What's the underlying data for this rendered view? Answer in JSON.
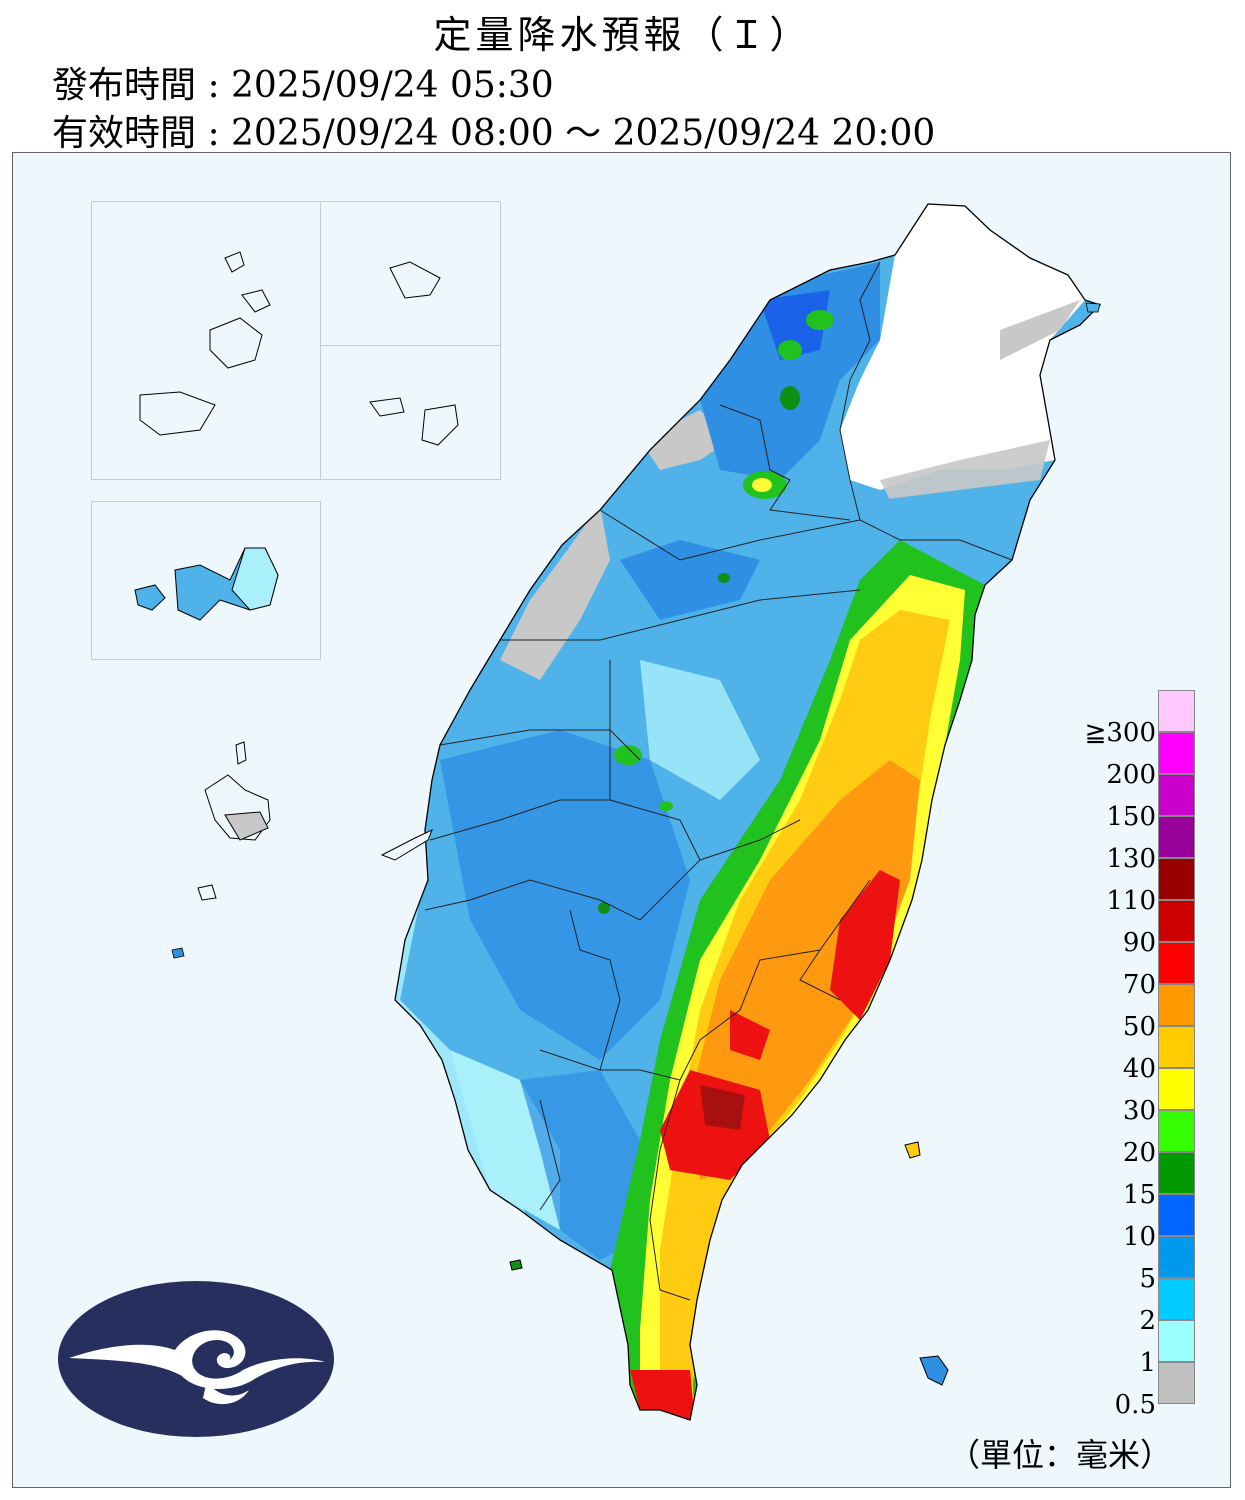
{
  "header": {
    "title": "定量降水預報（Ｉ）",
    "issued": "發布時間 : 2025/09/24 05:30",
    "valid": "有效時間 : 2025/09/24 08:00 ～ 2025/09/24 20:00"
  },
  "legend": {
    "unit": "（單位：毫米）",
    "levels": [
      {
        "label": "≧300",
        "color": "#ffc8ff"
      },
      {
        "label": "200",
        "color": "#ff00ff"
      },
      {
        "label": "150",
        "color": "#cc00cc"
      },
      {
        "label": "130",
        "color": "#990099"
      },
      {
        "label": "110",
        "color": "#990000"
      },
      {
        "label": "90",
        "color": "#cc0000"
      },
      {
        "label": "70",
        "color": "#ff0000"
      },
      {
        "label": "50",
        "color": "#ff9900"
      },
      {
        "label": "40",
        "color": "#ffcc00"
      },
      {
        "label": "30",
        "color": "#ffff00"
      },
      {
        "label": "20",
        "color": "#33ff00"
      },
      {
        "label": "15",
        "color": "#009900"
      },
      {
        "label": "10",
        "color": "#0066ff"
      },
      {
        "label": "5",
        "color": "#0099ee"
      },
      {
        "label": "2",
        "color": "#00ccff"
      },
      {
        "label": "1",
        "color": "#99ffff"
      },
      {
        "label": "0.5",
        "color": "#c0c0c0"
      }
    ]
  },
  "colors": {
    "background": "#eef7fc",
    "logo": "#262f5e"
  },
  "icons": {
    "logo": "cwa-cloud-logo-icon"
  }
}
